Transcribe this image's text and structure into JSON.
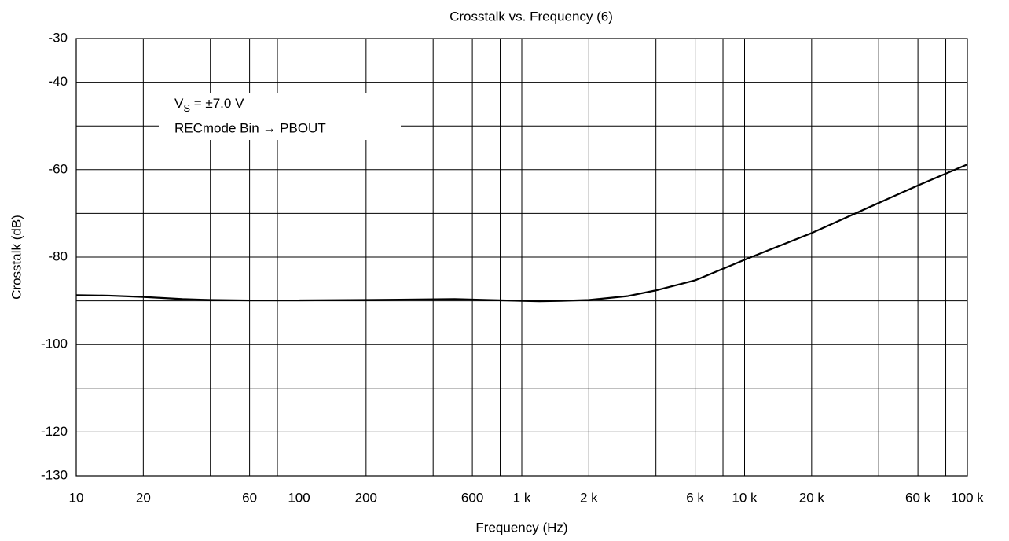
{
  "chart_data": {
    "type": "line",
    "title": "Crosstalk vs. Frequency (6)",
    "x_label": "Frequency  (Hz)",
    "y_label": "Crosstalk  (dB)",
    "annotation": {
      "line1": [
        "V",
        "S",
        " = ±7.0 V"
      ],
      "line2": "RECmode  Bin → PBOUT"
    },
    "xscale": "log",
    "xlim": [
      10,
      100000
    ],
    "ylim": [
      -130,
      -30
    ],
    "xticks": [
      10,
      20,
      60,
      100,
      200,
      600,
      {
        "value": 1000,
        "label": "1 k"
      },
      {
        "value": 2000,
        "label": "2 k"
      },
      {
        "value": 6000,
        "label": "6 k"
      },
      {
        "value": 10000,
        "label": "10 k"
      },
      {
        "value": 20000,
        "label": "20 k"
      },
      {
        "value": 60000,
        "label": "60 k"
      },
      {
        "value": 100000,
        "label": "100 k"
      }
    ],
    "yticks": [
      -30,
      -40,
      -60,
      -80,
      -100,
      -120,
      -130
    ],
    "xgrid": [
      20,
      40,
      60,
      80,
      100,
      200,
      400,
      600,
      800,
      1000,
      2000,
      4000,
      6000,
      8000,
      10000,
      20000,
      40000,
      60000,
      80000
    ],
    "ygrid": [
      -40,
      -50,
      -60,
      -70,
      -80,
      -90,
      -100,
      -110,
      -120
    ],
    "grid": true,
    "series": [
      {
        "color": "#000000",
        "x": [
          10,
          14,
          20,
          30,
          40,
          60,
          100,
          200,
          500,
          700,
          1000,
          1200,
          1500,
          2000,
          3000,
          4000,
          6000,
          10000,
          20000,
          40000,
          60000,
          100000
        ],
        "values": [
          -88.7,
          -88.8,
          -89.1,
          -89.6,
          -89.8,
          -89.9,
          -89.9,
          -89.8,
          -89.6,
          -89.8,
          -90.0,
          -90.1,
          -90.0,
          -89.8,
          -88.9,
          -87.6,
          -85.3,
          -80.6,
          -74.5,
          -67.6,
          -63.6,
          -58.8
        ]
      }
    ]
  }
}
